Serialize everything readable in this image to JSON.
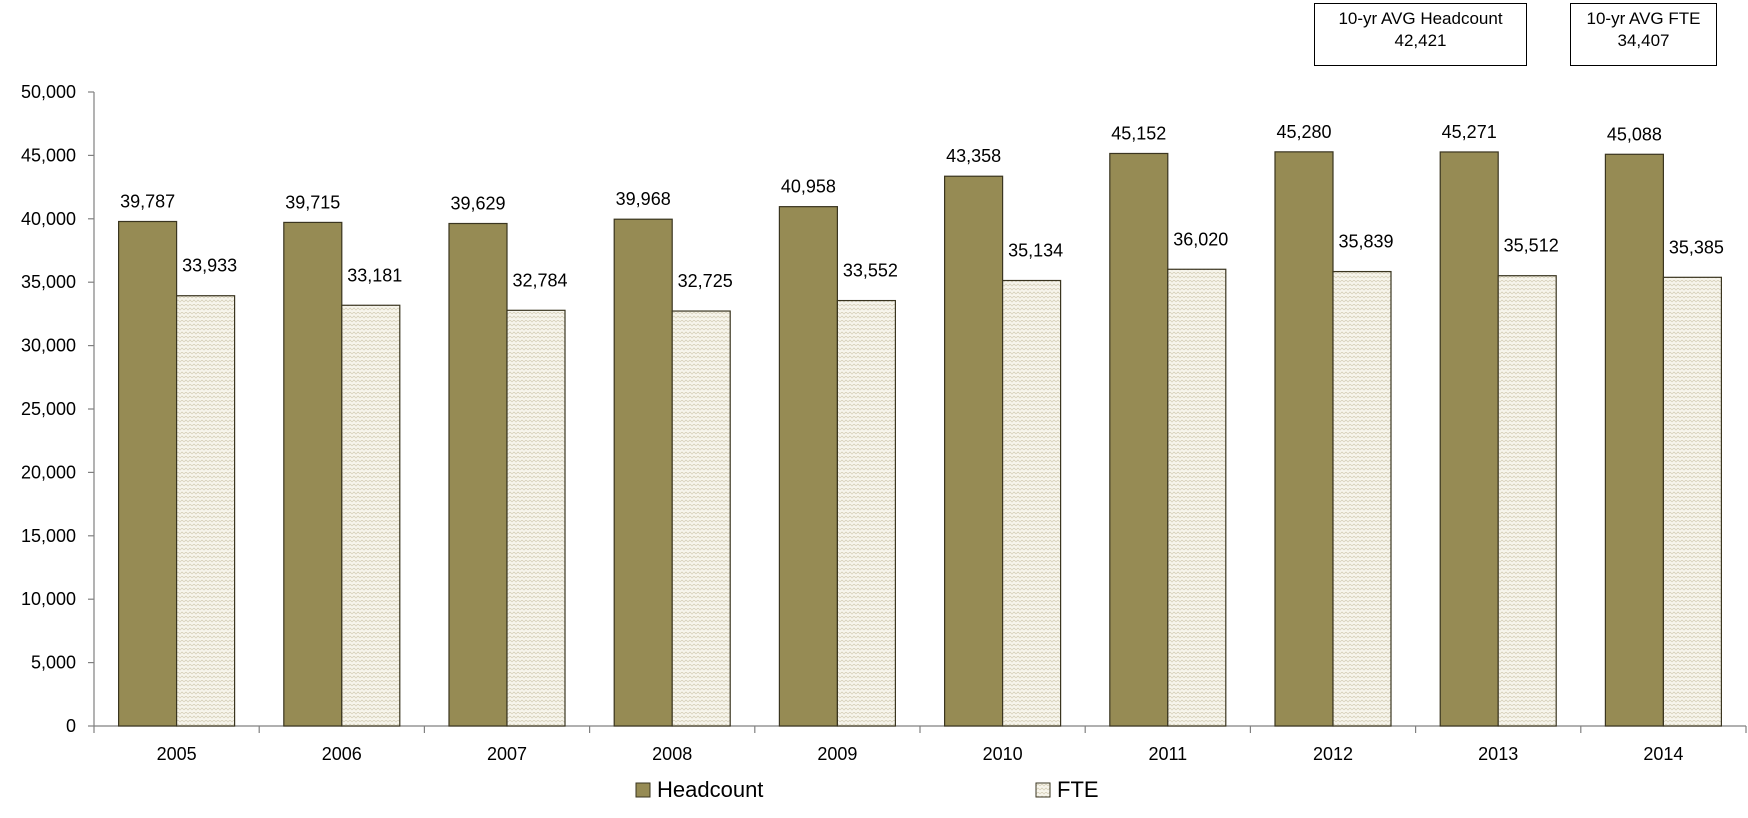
{
  "chart_data": {
    "type": "bar",
    "title": "",
    "xlabel": "",
    "ylabel": "",
    "ylim": [
      0,
      50000
    ],
    "yticks": [
      "0",
      "5,000",
      "10,000",
      "15,000",
      "20,000",
      "25,000",
      "30,000",
      "35,000",
      "40,000",
      "45,000",
      "50,000"
    ],
    "categories": [
      "2005",
      "2006",
      "2007",
      "2008",
      "2009",
      "2010",
      "2011",
      "2012",
      "2013",
      "2014"
    ],
    "series": [
      {
        "name": "Headcount",
        "color": "#968b54",
        "values": [
          39787,
          39715,
          39629,
          39968,
          40958,
          43358,
          45152,
          45280,
          45271,
          45088
        ],
        "labels": [
          "39,787",
          "39,715",
          "39,629",
          "39,968",
          "40,958",
          "43,358",
          "45,152",
          "45,280",
          "45,271",
          "45,088"
        ]
      },
      {
        "name": "FTE",
        "color": "#f6f3e8",
        "pattern": "light-zigzag",
        "values": [
          33933,
          33181,
          32784,
          32725,
          33552,
          35134,
          36020,
          35839,
          35512,
          35385
        ],
        "labels": [
          "33,933",
          "33,181",
          "32,784",
          "32,725",
          "33,552",
          "35,134",
          "36,020",
          "35,839",
          "35,512",
          "35,385"
        ]
      }
    ],
    "grid": false,
    "legend_position": "bottom"
  },
  "annotations": {
    "avg_headcount": {
      "label": "10-yr AVG Headcount",
      "value": "42,421"
    },
    "avg_fte": {
      "label": "10-yr AVG FTE",
      "value": "34,407"
    }
  }
}
